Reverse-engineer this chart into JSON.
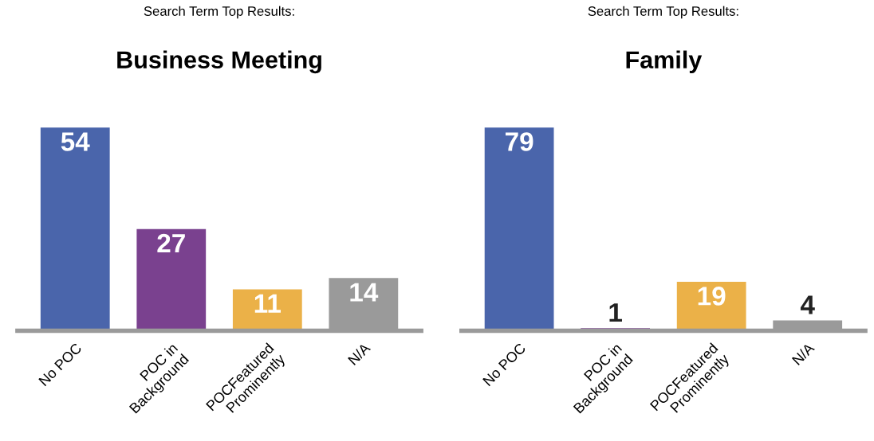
{
  "chart_data": [
    {
      "type": "bar",
      "subtitle": "Search Term Top Results:",
      "title": "Business Meeting",
      "categories": [
        "No POC",
        "POC in\nBackground",
        "POCFeatured\nProminently",
        "N/A"
      ],
      "values": [
        54,
        27,
        11,
        14
      ],
      "colors": [
        "#4a65ab",
        "#7a418f",
        "#ebb148",
        "#9a9a9a"
      ],
      "data_labels": true,
      "grid": false,
      "legend": false
    },
    {
      "type": "bar",
      "subtitle": "Search Term Top Results:",
      "title": "Family",
      "categories": [
        "No POC",
        "POC in\nBackground",
        "POCFeatured\nProminently",
        "N/A"
      ],
      "values": [
        79,
        1,
        19,
        4
      ],
      "colors": [
        "#4a65ab",
        "#7a418f",
        "#ebb148",
        "#9a9a9a"
      ],
      "data_labels": true,
      "grid": false,
      "legend": false
    }
  ]
}
